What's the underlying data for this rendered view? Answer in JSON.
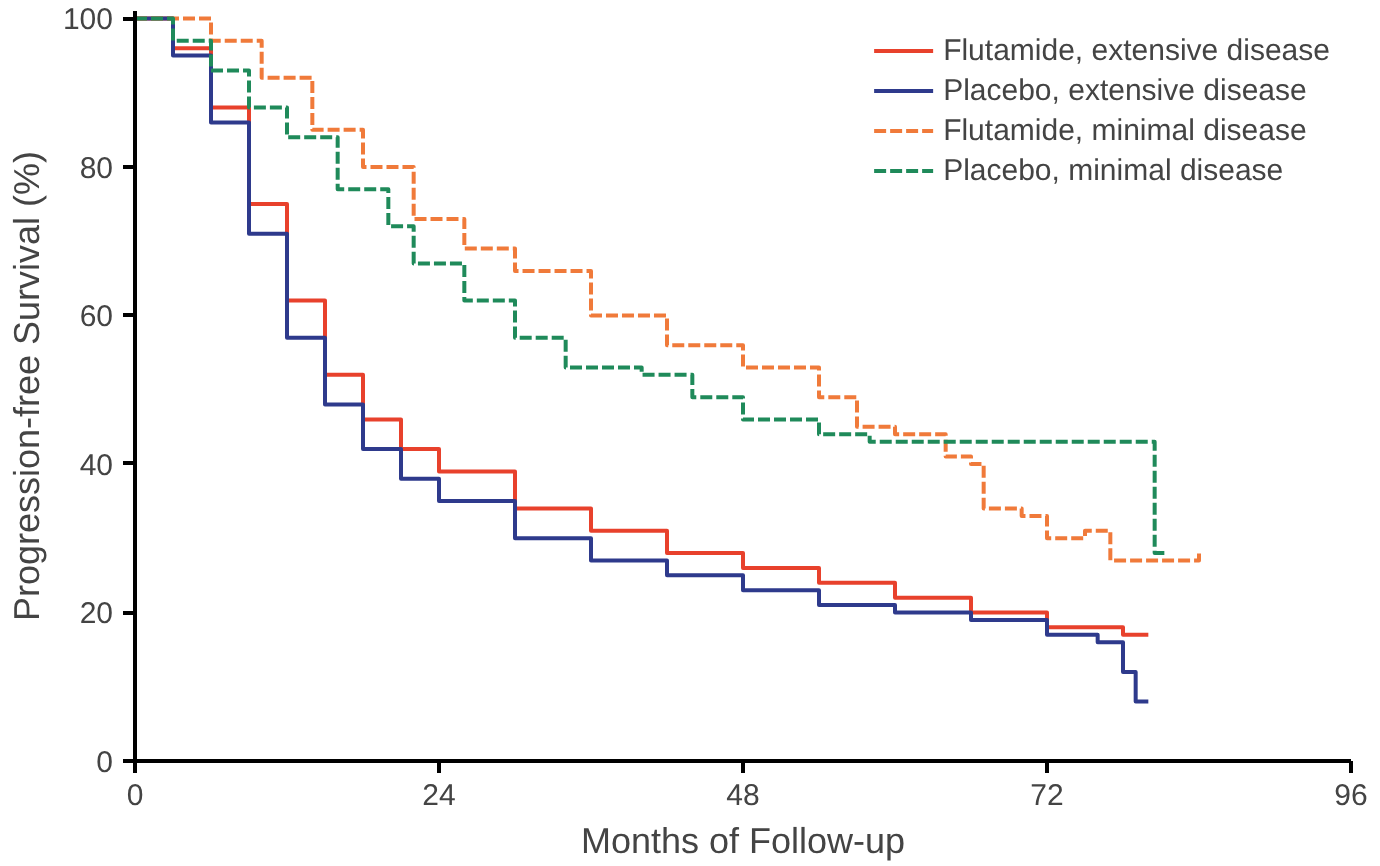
{
  "chart_data": {
    "type": "step",
    "xlabel": "Months of Follow-up",
    "ylabel": "Progression-free Survival (%)",
    "xlim": [
      0,
      96
    ],
    "ylim": [
      0,
      101
    ],
    "xticks": [
      0,
      24,
      48,
      72,
      96
    ],
    "yticks": [
      0,
      20,
      40,
      60,
      80,
      100
    ],
    "grid": false,
    "legend": "top right",
    "series": [
      {
        "name": "Flutamide, extensive disease",
        "color": "#e8412c",
        "x": [
          0,
          3,
          6,
          9,
          12,
          15,
          18,
          21,
          24,
          30,
          36,
          42,
          48,
          54,
          60,
          66,
          72,
          78,
          80
        ],
        "values": [
          100,
          96,
          88,
          75,
          62,
          52,
          46,
          42,
          39,
          34,
          31,
          28,
          26,
          24,
          22,
          20,
          18,
          17,
          17
        ]
      },
      {
        "name": "Placebo, extensive disease",
        "color": "#2e3a8c",
        "x": [
          0,
          3,
          6,
          9,
          12,
          15,
          18,
          21,
          24,
          30,
          36,
          42,
          48,
          54,
          60,
          66,
          72,
          76,
          78,
          79,
          80
        ],
        "values": [
          100,
          95,
          86,
          71,
          57,
          48,
          42,
          38,
          35,
          30,
          27,
          25,
          23,
          21,
          20,
          19,
          17,
          16,
          12,
          8,
          8
        ]
      },
      {
        "name": "Flutamide, minimal disease",
        "color": "#f07a3a",
        "line_style": "dashed",
        "x": [
          0,
          6,
          10,
          14,
          18,
          22,
          26,
          30,
          36,
          42,
          48,
          54,
          57,
          60,
          64,
          66,
          67,
          70,
          72,
          75,
          77,
          84
        ],
        "values": [
          100,
          97,
          92,
          85,
          80,
          73,
          69,
          66,
          60,
          56,
          53,
          49,
          45,
          44,
          41,
          40,
          34,
          33,
          30,
          31,
          27,
          28
        ]
      },
      {
        "name": "Placebo, minimal disease",
        "color": "#1f8a5a",
        "line_style": "dashed",
        "x": [
          0,
          3,
          6,
          9,
          12,
          16,
          20,
          22,
          26,
          30,
          34,
          40,
          44,
          48,
          54,
          58,
          80,
          80.5,
          81.5
        ],
        "values": [
          100,
          97,
          93,
          88,
          84,
          77,
          72,
          67,
          62,
          57,
          53,
          52,
          49,
          46,
          44,
          43,
          43,
          28,
          28
        ]
      }
    ]
  }
}
